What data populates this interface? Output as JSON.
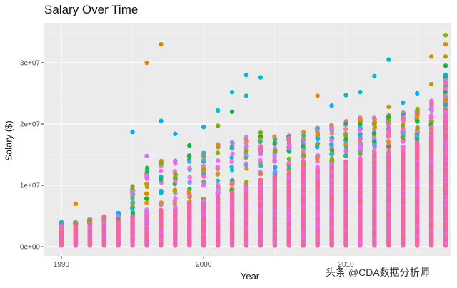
{
  "chart_data": {
    "type": "scatter",
    "title": "Salary Over Time",
    "xlabel": "Year",
    "ylabel": "Salary ($)",
    "xlim": [
      1988.8,
      2017.4
    ],
    "ylim": [
      -1500000,
      36500000
    ],
    "x_ticks": [
      1990,
      2000,
      2010
    ],
    "x_tick_labels": [
      "1990",
      "2000",
      "2010"
    ],
    "y_ticks": [
      0,
      10000000,
      20000000,
      30000000
    ],
    "y_tick_labels": [
      "0e+00",
      "1e+07",
      "2e+07",
      "3e+07"
    ],
    "grid": true,
    "legend": "none",
    "point_colors": [
      "#f564e3",
      "#e76bf3",
      "#ff61c3",
      "#c77cff",
      "#00b0f6",
      "#00bfc4",
      "#619cff",
      "#00ba38",
      "#7cae00",
      "#b79f00",
      "#de8c00",
      "#f8766d"
    ],
    "dense_color": "#f0679a",
    "years": [
      1990,
      1991,
      1992,
      1993,
      1994,
      1995,
      1996,
      1997,
      1998,
      1999,
      2000,
      2001,
      2002,
      2003,
      2004,
      2005,
      2006,
      2007,
      2008,
      2009,
      2010,
      2011,
      2012,
      2013,
      2014,
      2015,
      2016,
      2017
    ],
    "max_salary_by_year": [
      4200000,
      7000000,
      5800000,
      6100000,
      7300000,
      18700000,
      30000000,
      33000000,
      18400000,
      16500000,
      19500000,
      22200000,
      25200000,
      28000000,
      27600000,
      20000000,
      21000000,
      23000000,
      24600000,
      23000000,
      24700000,
      25200000,
      27800000,
      30500000,
      23500000,
      25000000,
      31000000,
      34500000
    ],
    "dense_top_by_year": [
      3500000,
      3600000,
      3800000,
      4000000,
      4200000,
      5000000,
      5500000,
      6000000,
      6500000,
      7000000,
      7500000,
      8000000,
      9000000,
      10000000,
      11000000,
      11500000,
      12000000,
      12500000,
      13000000,
      13500000,
      14000000,
      14500000,
      15000000,
      15500000,
      16000000,
      17000000,
      18500000,
      22000000
    ],
    "scatter_top_by_year": [
      4000000,
      4000000,
      4500000,
      5000000,
      5500000,
      9500000,
      13000000,
      14500000,
      14500000,
      15500000,
      16000000,
      17000000,
      17500000,
      18000000,
      18000000,
      18500000,
      18500000,
      19000000,
      19500000,
      20000000,
      20500000,
      21000000,
      21000000,
      21500000,
      22000000,
      22500000,
      24000000,
      28000000
    ],
    "outliers": [
      {
        "x": 1991,
        "y": 7000000,
        "color": "#de8c00"
      },
      {
        "x": 1995,
        "y": 18700000,
        "color": "#00b0f6"
      },
      {
        "x": 1995,
        "y": 9800000,
        "color": "#7cae00"
      },
      {
        "x": 1996,
        "y": 30000000,
        "color": "#de8c00"
      },
      {
        "x": 1996,
        "y": 14800000,
        "color": "#c77cff"
      },
      {
        "x": 1997,
        "y": 33000000,
        "color": "#de8c00"
      },
      {
        "x": 1997,
        "y": 20500000,
        "color": "#00b0f6"
      },
      {
        "x": 1998,
        "y": 18400000,
        "color": "#00b0f6"
      },
      {
        "x": 1999,
        "y": 16500000,
        "color": "#00ba38"
      },
      {
        "x": 2000,
        "y": 19500000,
        "color": "#00bfc4"
      },
      {
        "x": 2001,
        "y": 22200000,
        "color": "#00bfc4"
      },
      {
        "x": 2001,
        "y": 19700000,
        "color": "#7cae00"
      },
      {
        "x": 2002,
        "y": 25200000,
        "color": "#00bfc4"
      },
      {
        "x": 2002,
        "y": 22000000,
        "color": "#00ba38"
      },
      {
        "x": 2003,
        "y": 28000000,
        "color": "#00b0f6"
      },
      {
        "x": 2003,
        "y": 24600000,
        "color": "#00bfc4"
      },
      {
        "x": 2004,
        "y": 27600000,
        "color": "#00bfc4"
      },
      {
        "x": 2004,
        "y": 18600000,
        "color": "#7cae00"
      },
      {
        "x": 2008,
        "y": 24600000,
        "color": "#de8c00"
      },
      {
        "x": 2009,
        "y": 23000000,
        "color": "#00b0f6"
      },
      {
        "x": 2010,
        "y": 24700000,
        "color": "#00bfc4"
      },
      {
        "x": 2011,
        "y": 25200000,
        "color": "#00bfc4"
      },
      {
        "x": 2011,
        "y": 21000000,
        "color": "#f8766d"
      },
      {
        "x": 2012,
        "y": 27800000,
        "color": "#00bfc4"
      },
      {
        "x": 2013,
        "y": 30500000,
        "color": "#00bfc4"
      },
      {
        "x": 2013,
        "y": 22800000,
        "color": "#b79f00"
      },
      {
        "x": 2014,
        "y": 23500000,
        "color": "#00b0f6"
      },
      {
        "x": 2015,
        "y": 25000000,
        "color": "#00b0f6"
      },
      {
        "x": 2016,
        "y": 31000000,
        "color": "#de8c00"
      },
      {
        "x": 2016,
        "y": 26500000,
        "color": "#b79f00"
      },
      {
        "x": 2017,
        "y": 34500000,
        "color": "#7cae00"
      },
      {
        "x": 2017,
        "y": 33000000,
        "color": "#de8c00"
      },
      {
        "x": 2017,
        "y": 31000000,
        "color": "#b79f00"
      },
      {
        "x": 2017,
        "y": 29500000,
        "color": "#00ba38"
      },
      {
        "x": 2017,
        "y": 28000000,
        "color": "#00b0f6"
      }
    ]
  },
  "watermark": {
    "text": "头条 @CDA数据分析师"
  }
}
